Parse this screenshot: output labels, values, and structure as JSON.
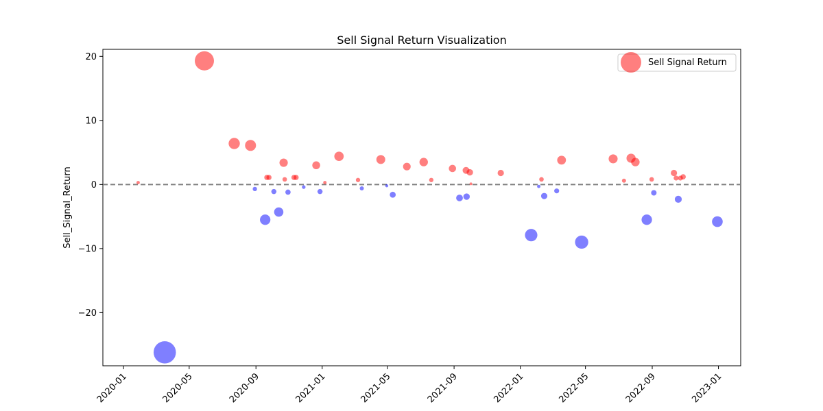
{
  "chart_data": {
    "type": "scatter",
    "title": "Sell Signal Return Visualization",
    "xlabel": "",
    "ylabel": "Sell_Signal_Return",
    "legend": {
      "label": "Sell Signal Return",
      "position": "top-right"
    },
    "colors": {
      "positive": "#ff0000",
      "negative": "#0000ff",
      "zero_line": "#808080"
    },
    "x_axis": {
      "type": "date",
      "tick_labels": [
        "2020-01",
        "2020-05",
        "2020-09",
        "2021-01",
        "2021-05",
        "2021-09",
        "2022-01",
        "2022-05",
        "2022-09",
        "2023-01"
      ],
      "tick_values": [
        "2020-01-01",
        "2020-05-01",
        "2020-09-01",
        "2021-01-01",
        "2021-05-01",
        "2021-09-01",
        "2022-01-01",
        "2022-05-01",
        "2022-09-01",
        "2023-01-01"
      ],
      "range": [
        "2019-11-24",
        "2023-02-11"
      ]
    },
    "y_axis": {
      "ticks": [
        -20,
        -10,
        0,
        10,
        20
      ],
      "range": [
        -28.3,
        21.1
      ]
    },
    "grid": false,
    "reference_line": {
      "y": 0,
      "style": "dashed"
    },
    "points": [
      {
        "date": "2020-01-28",
        "value": 0.3
      },
      {
        "date": "2020-03-17",
        "value": -26.2
      },
      {
        "date": "2020-05-29",
        "value": 19.3
      },
      {
        "date": "2020-07-23",
        "value": 6.4
      },
      {
        "date": "2020-08-22",
        "value": 6.1
      },
      {
        "date": "2020-08-30",
        "value": -0.7
      },
      {
        "date": "2020-09-18",
        "value": -5.5
      },
      {
        "date": "2020-09-21",
        "value": 1.1
      },
      {
        "date": "2020-09-25",
        "value": 1.1
      },
      {
        "date": "2020-10-04",
        "value": -1.1
      },
      {
        "date": "2020-10-13",
        "value": -4.3
      },
      {
        "date": "2020-10-22",
        "value": 3.4
      },
      {
        "date": "2020-10-24",
        "value": 0.8
      },
      {
        "date": "2020-10-30",
        "value": -1.2
      },
      {
        "date": "2020-11-10",
        "value": 1.1
      },
      {
        "date": "2020-11-14",
        "value": 1.1
      },
      {
        "date": "2020-11-28",
        "value": -0.4
      },
      {
        "date": "2020-12-21",
        "value": 3.0
      },
      {
        "date": "2020-12-28",
        "value": -1.1
      },
      {
        "date": "2021-01-06",
        "value": 0.3
      },
      {
        "date": "2021-02-01",
        "value": 4.4
      },
      {
        "date": "2021-03-08",
        "value": 0.7
      },
      {
        "date": "2021-03-15",
        "value": -0.6
      },
      {
        "date": "2021-04-19",
        "value": 3.9
      },
      {
        "date": "2021-04-30",
        "value": -0.2
      },
      {
        "date": "2021-05-11",
        "value": -1.6
      },
      {
        "date": "2021-06-06",
        "value": 2.8
      },
      {
        "date": "2021-07-07",
        "value": 3.5
      },
      {
        "date": "2021-07-21",
        "value": 0.7
      },
      {
        "date": "2021-08-29",
        "value": 2.5
      },
      {
        "date": "2021-09-11",
        "value": -2.1
      },
      {
        "date": "2021-09-23",
        "value": 2.2
      },
      {
        "date": "2021-09-24",
        "value": -1.9
      },
      {
        "date": "2021-09-30",
        "value": 1.9
      },
      {
        "date": "2021-10-02",
        "value": 0.1
      },
      {
        "date": "2021-11-26",
        "value": 1.8
      },
      {
        "date": "2022-01-21",
        "value": -7.9
      },
      {
        "date": "2022-02-04",
        "value": -0.3
      },
      {
        "date": "2022-02-09",
        "value": 0.8
      },
      {
        "date": "2022-02-14",
        "value": -1.8
      },
      {
        "date": "2022-03-09",
        "value": -1.0
      },
      {
        "date": "2022-03-18",
        "value": 3.8
      },
      {
        "date": "2022-04-24",
        "value": -9.0
      },
      {
        "date": "2022-06-21",
        "value": 4.0
      },
      {
        "date": "2022-07-11",
        "value": 0.6
      },
      {
        "date": "2022-07-24",
        "value": 4.1
      },
      {
        "date": "2022-08-01",
        "value": 3.5
      },
      {
        "date": "2022-08-22",
        "value": -5.5
      },
      {
        "date": "2022-08-31",
        "value": 0.8
      },
      {
        "date": "2022-09-04",
        "value": -1.3
      },
      {
        "date": "2022-10-11",
        "value": 1.8
      },
      {
        "date": "2022-10-15",
        "value": 1.0
      },
      {
        "date": "2022-10-19",
        "value": -2.3
      },
      {
        "date": "2022-10-23",
        "value": 1.0
      },
      {
        "date": "2022-10-28",
        "value": 1.2
      },
      {
        "date": "2022-12-30",
        "value": -5.8
      }
    ]
  }
}
